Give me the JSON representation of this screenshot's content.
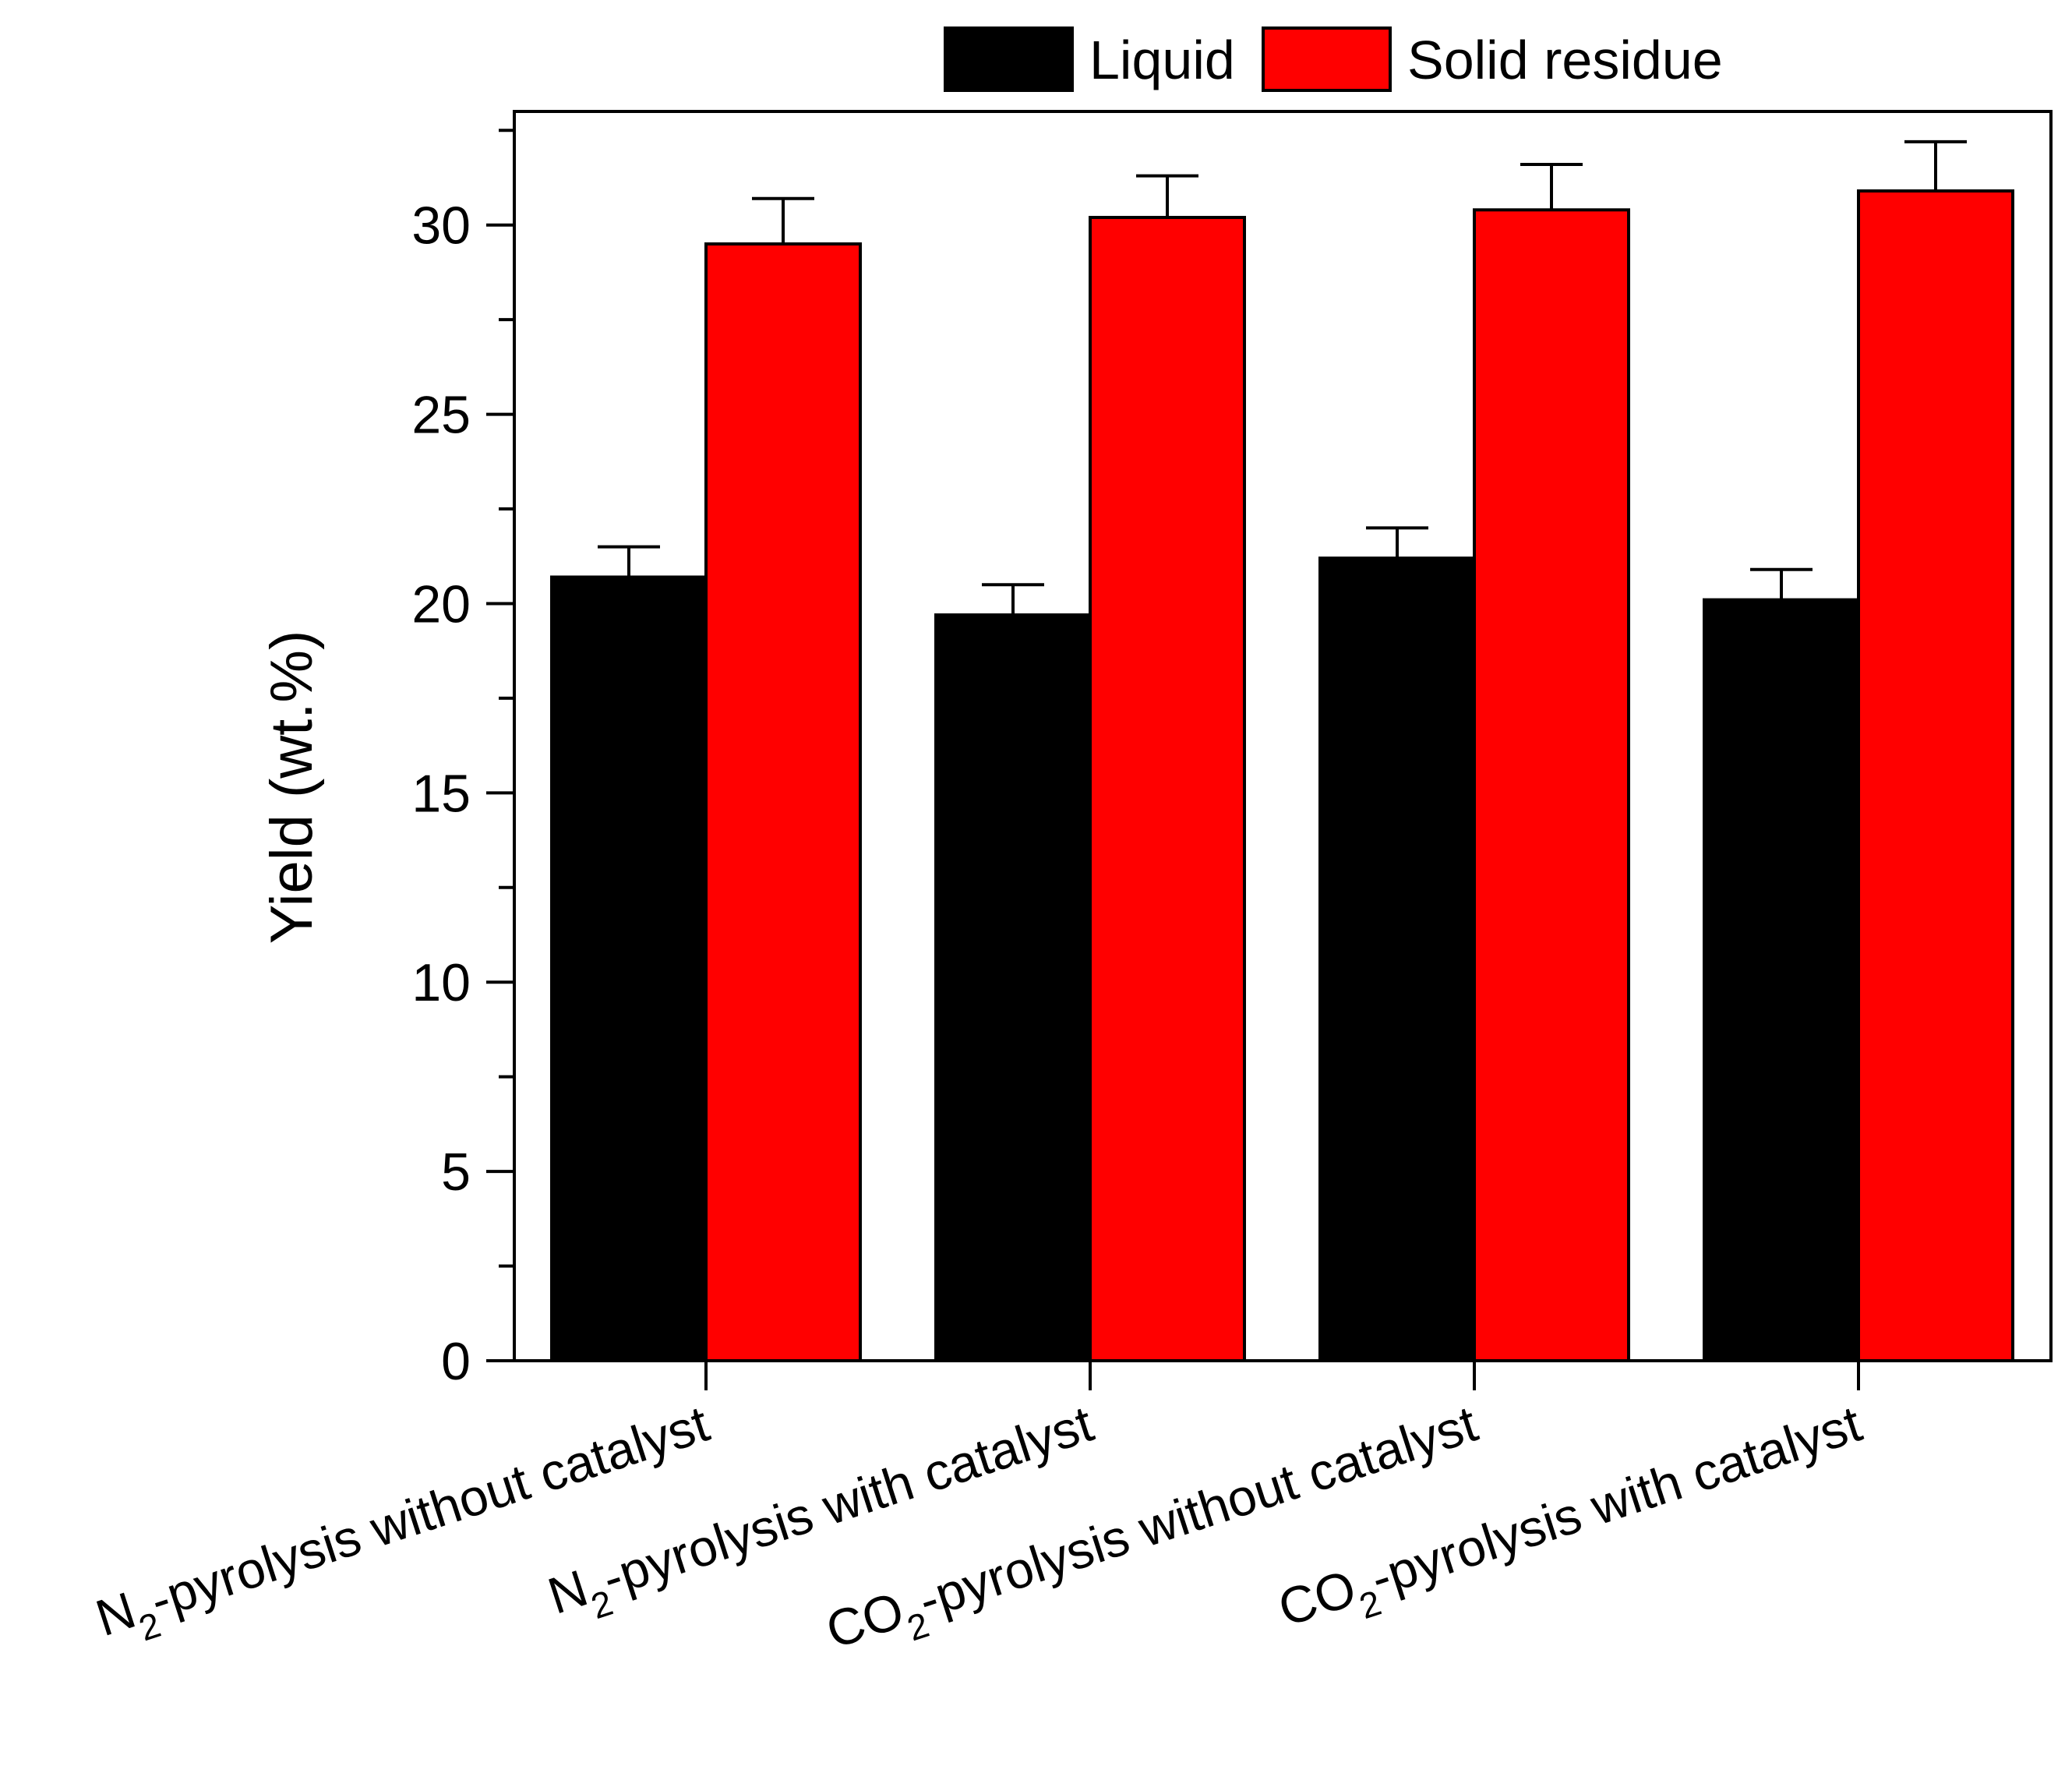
{
  "chart_data": {
    "type": "bar",
    "title": "",
    "xlabel": "",
    "ylabel": "Yield (wt.%)",
    "ylim": [
      0,
      33
    ],
    "yticks": [
      0,
      5,
      10,
      15,
      20,
      25,
      30
    ],
    "grid": false,
    "legend_position": "top-center",
    "categories": [
      {
        "prefix": "N",
        "sub": "2",
        "suffix": "-pyrolysis without catalyst"
      },
      {
        "prefix": "N",
        "sub": "2",
        "suffix": "-pyrolysis with catalyst"
      },
      {
        "prefix": "CO",
        "sub": "2",
        "suffix": "-pyrolysis without catalyst"
      },
      {
        "prefix": "CO",
        "sub": "2",
        "suffix": "-pyrolysis with catalyst"
      }
    ],
    "series": [
      {
        "name": "Liquid",
        "color": "#000000",
        "values": [
          20.7,
          19.7,
          21.2,
          20.1
        ],
        "errors": [
          0.8,
          0.8,
          0.8,
          0.8
        ]
      },
      {
        "name": "Solid residue",
        "color": "#ff0000",
        "values": [
          29.5,
          30.2,
          30.4,
          30.9
        ],
        "errors": [
          1.2,
          1.1,
          1.2,
          1.3
        ]
      }
    ]
  }
}
